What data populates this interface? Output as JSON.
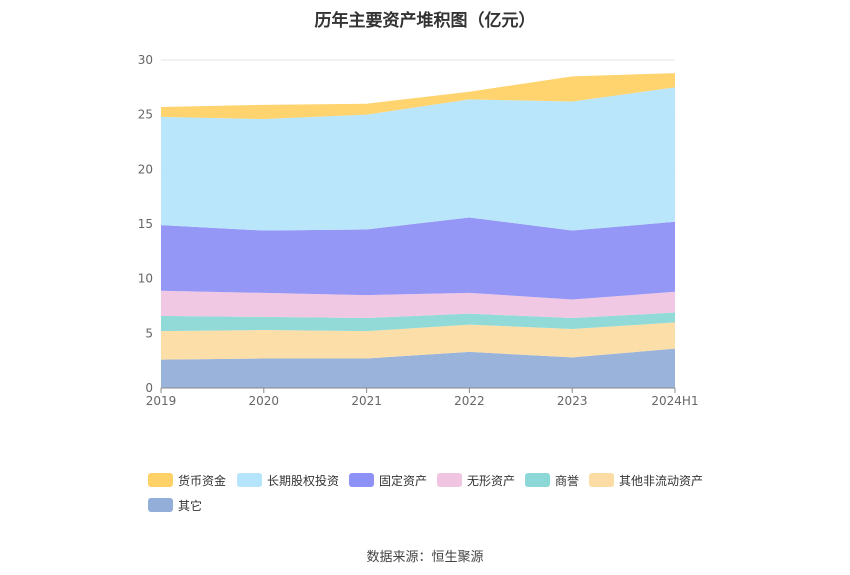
{
  "chart_data": {
    "type": "area",
    "stacked": true,
    "title": "历年主要资产堆积图（亿元）",
    "categories": [
      "2019",
      "2020",
      "2021",
      "2022",
      "2023",
      "2024H1"
    ],
    "ylim": [
      0,
      30
    ],
    "yticks": [
      "0",
      "5",
      "10",
      "15",
      "20",
      "25",
      "30"
    ],
    "grid": true,
    "legend_position": "bottom",
    "series": [
      {
        "name": "其它",
        "color": "#93afd9",
        "values": [
          2.6,
          2.7,
          2.7,
          3.3,
          2.8,
          3.6
        ]
      },
      {
        "name": "其他非流动资产",
        "color": "#fcdca4",
        "values": [
          2.6,
          2.6,
          2.5,
          2.5,
          2.6,
          2.4
        ]
      },
      {
        "name": "商誉",
        "color": "#8bd8d6",
        "values": [
          1.4,
          1.2,
          1.2,
          1.0,
          1.0,
          0.9
        ]
      },
      {
        "name": "无形资产",
        "color": "#f0c5e1",
        "values": [
          2.3,
          2.2,
          2.1,
          1.9,
          1.7,
          1.9
        ]
      },
      {
        "name": "固定资产",
        "color": "#8e91f5",
        "values": [
          6.0,
          5.7,
          6.0,
          6.9,
          6.3,
          6.4
        ]
      },
      {
        "name": "长期股权投资",
        "color": "#b6e5fb",
        "values": [
          9.9,
          10.2,
          10.5,
          10.8,
          11.8,
          12.3
        ]
      },
      {
        "name": "货币资金",
        "color": "#ffd166",
        "values": [
          0.9,
          1.3,
          1.0,
          0.7,
          2.3,
          1.3
        ]
      }
    ]
  },
  "legend_order": [
    6,
    5,
    4,
    3,
    2,
    1,
    0
  ],
  "source": "数据来源：恒生聚源"
}
